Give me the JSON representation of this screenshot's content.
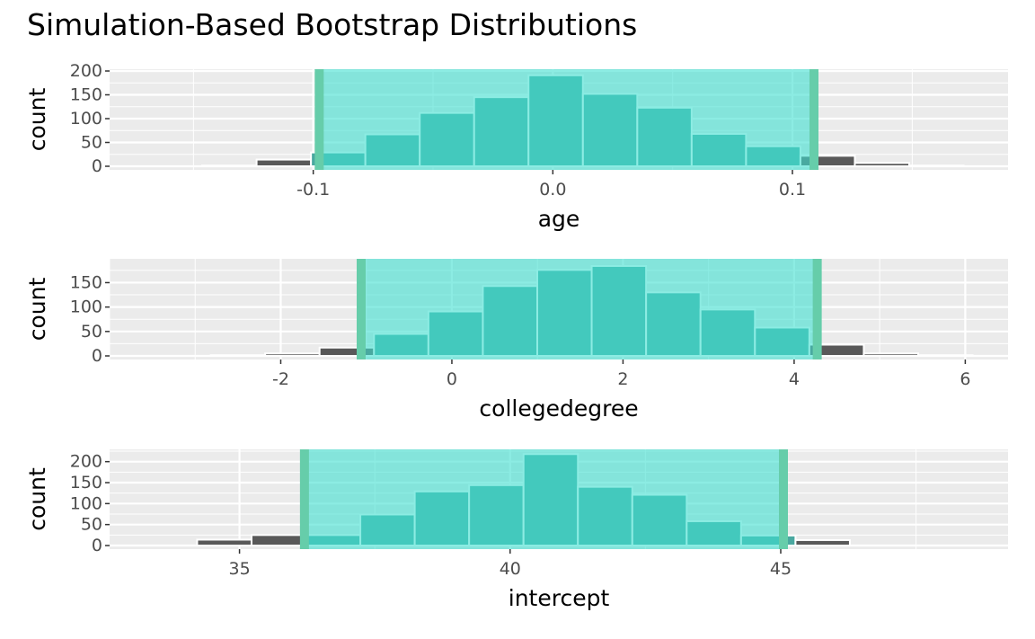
{
  "title": "Simulation-Based Bootstrap Distributions",
  "colors": {
    "panel_bg": "#EBEBEB",
    "grid": "#FFFFFF",
    "bar_outside": "#595959",
    "bar_inside": "#4AA8A0",
    "ci_fill": "#40E0D0",
    "ci_line": "#66CDAA",
    "bar_outline": "#FFFFFF"
  },
  "chart_data": [
    {
      "type": "bar",
      "name": "age",
      "xlabel": "age",
      "ylabel": "count",
      "xlim": [
        -0.185,
        0.19
      ],
      "ylim": [
        0,
        200
      ],
      "xticks": [
        -0.1,
        0.0,
        0.1
      ],
      "xtick_labels": [
        "-0.1",
        "0.0",
        "0.1"
      ],
      "yticks": [
        0,
        50,
        100,
        150,
        200
      ],
      "ytick_labels": [
        "0",
        "50",
        "100",
        "150",
        "200"
      ],
      "ci": [
        -0.0975,
        0.109
      ],
      "binwidth": 0.0227,
      "bins": [
        {
          "x": -0.135,
          "count": 1
        },
        {
          "x": -0.1123,
          "count": 14
        },
        {
          "x": -0.0896,
          "count": 29
        },
        {
          "x": -0.0669,
          "count": 67
        },
        {
          "x": -0.0442,
          "count": 112
        },
        {
          "x": -0.0215,
          "count": 145
        },
        {
          "x": 0.0012,
          "count": 191
        },
        {
          "x": 0.0239,
          "count": 152
        },
        {
          "x": 0.0466,
          "count": 123
        },
        {
          "x": 0.0693,
          "count": 68
        },
        {
          "x": 0.092,
          "count": 42
        },
        {
          "x": 0.1147,
          "count": 22
        },
        {
          "x": 0.1374,
          "count": 7
        },
        {
          "x": 0.1601,
          "count": 1
        }
      ]
    },
    {
      "type": "bar",
      "name": "collegedegree",
      "xlabel": "collegedegree",
      "ylabel": "count",
      "xlim": [
        -4.0,
        6.5
      ],
      "ylim": [
        0,
        195
      ],
      "xticks": [
        -2,
        0,
        2,
        4,
        6
      ],
      "xtick_labels": [
        "-2",
        "0",
        "2",
        "4",
        "6"
      ],
      "yticks": [
        0,
        50,
        100,
        150
      ],
      "ytick_labels": [
        "0",
        "50",
        "100",
        "150"
      ],
      "ci": [
        -1.06,
        4.27
      ],
      "binwidth": 0.636,
      "bins": [
        {
          "x": -2.5,
          "count": 1
        },
        {
          "x": -1.864,
          "count": 5
        },
        {
          "x": -1.228,
          "count": 17
        },
        {
          "x": -0.592,
          "count": 45
        },
        {
          "x": 0.044,
          "count": 91
        },
        {
          "x": 0.68,
          "count": 143
        },
        {
          "x": 1.316,
          "count": 176
        },
        {
          "x": 1.952,
          "count": 184
        },
        {
          "x": 2.588,
          "count": 130
        },
        {
          "x": 3.224,
          "count": 95
        },
        {
          "x": 3.86,
          "count": 58
        },
        {
          "x": 4.496,
          "count": 23
        },
        {
          "x": 5.132,
          "count": 5
        },
        {
          "x": 5.768,
          "count": 1
        }
      ]
    },
    {
      "type": "bar",
      "name": "intercept",
      "xlabel": "intercept",
      "ylabel": "count",
      "xlim": [
        32.6,
        49.2
      ],
      "ylim": [
        0,
        225
      ],
      "xticks": [
        35,
        40,
        45
      ],
      "xtick_labels": [
        "35",
        "40",
        "45"
      ],
      "yticks": [
        0,
        50,
        100,
        150,
        200
      ],
      "ytick_labels": [
        "0",
        "50",
        "100",
        "150",
        "200"
      ],
      "ci": [
        36.2,
        45.05
      ],
      "binwidth": 1.005,
      "bins": [
        {
          "x": 34.72,
          "count": 14
        },
        {
          "x": 35.725,
          "count": 25
        },
        {
          "x": 36.73,
          "count": 25
        },
        {
          "x": 37.735,
          "count": 74
        },
        {
          "x": 38.74,
          "count": 129
        },
        {
          "x": 39.745,
          "count": 144
        },
        {
          "x": 40.75,
          "count": 218
        },
        {
          "x": 41.755,
          "count": 140
        },
        {
          "x": 42.76,
          "count": 121
        },
        {
          "x": 43.765,
          "count": 58
        },
        {
          "x": 44.77,
          "count": 24
        },
        {
          "x": 45.775,
          "count": 13
        }
      ]
    }
  ]
}
